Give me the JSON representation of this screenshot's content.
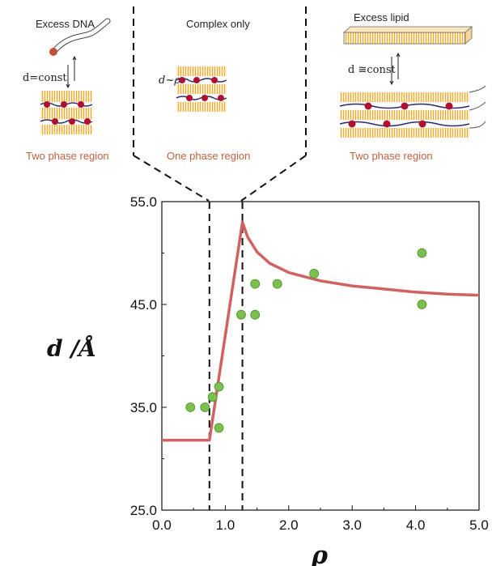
{
  "panels": [
    {
      "title": "Excess DNA",
      "relation": "d=const",
      "region": "Two phase region"
    },
    {
      "title": "Complex only",
      "relation": "d~ρ",
      "region": "One phase region"
    },
    {
      "title": "Excess lipid",
      "relation": "d ≅const",
      "region": "Two phase region"
    }
  ],
  "colors": {
    "accent": "#c0603e",
    "curve": "#d06262",
    "points": "#7bbf4c",
    "point_edge": "#4f8f2f",
    "lipid": "#f0a830",
    "dna": "#b01030"
  },
  "chart_data": {
    "type": "scatter",
    "xlabel": "ρ",
    "ylabel": "d /Å",
    "xlim": [
      0,
      5
    ],
    "ylim": [
      25,
      55
    ],
    "xticks": [
      "0.0",
      "1.0",
      "2.0",
      "3.0",
      "4.0",
      "5.0"
    ],
    "yticks": [
      "25.0",
      "35.0",
      "45.0",
      "55.0"
    ],
    "grid": false,
    "boundaries": [
      0.75,
      1.27
    ],
    "series": [
      {
        "type": "scatter",
        "x": [
          0.45,
          0.68,
          0.8,
          0.9,
          0.9,
          1.25,
          1.47,
          1.47,
          1.82,
          2.4,
          4.1,
          4.1
        ],
        "y": [
          35,
          35,
          36,
          37,
          33,
          44,
          47,
          44,
          47,
          48,
          50,
          45
        ]
      },
      {
        "type": "line",
        "x": [
          0.0,
          0.75,
          1.27,
          1.35,
          1.5,
          1.7,
          2.0,
          2.5,
          3.0,
          3.5,
          4.0,
          4.5,
          5.0
        ],
        "y": [
          31.8,
          31.8,
          53.0,
          51.6,
          50.1,
          49.0,
          48.1,
          47.3,
          46.8,
          46.5,
          46.2,
          46.0,
          45.9
        ]
      }
    ]
  }
}
